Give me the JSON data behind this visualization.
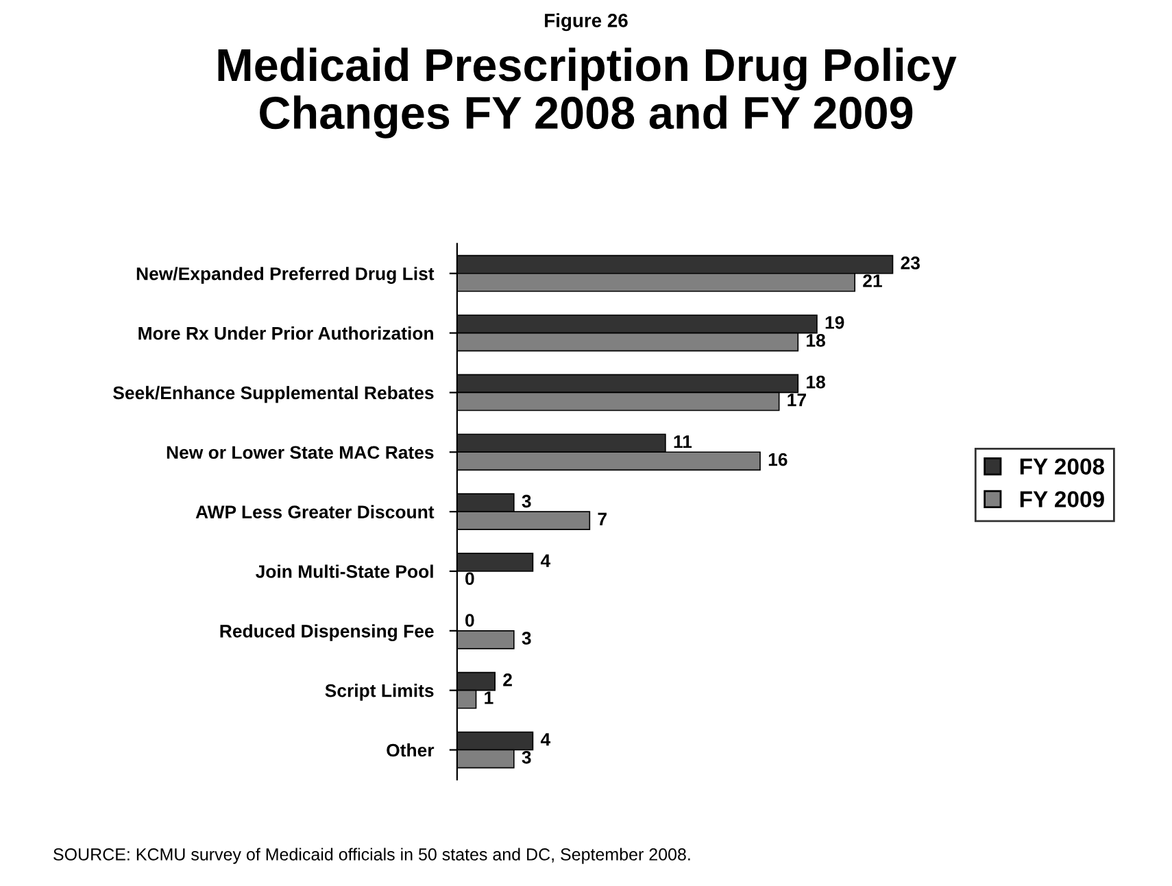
{
  "chart_data": {
    "type": "bar",
    "orientation": "horizontal",
    "title": "Medicaid Prescription Drug Policy\nChanges FY 2008 and FY 2009",
    "categories": [
      "New/Expanded Preferred Drug List",
      "More Rx Under Prior Authorization",
      "Seek/Enhance Supplemental Rebates",
      "New or Lower State MAC Rates",
      "AWP Less Greater Discount",
      "Join Multi-State Pool",
      "Reduced Dispensing Fee",
      "Script Limits",
      "Other"
    ],
    "series": [
      {
        "name": "FY 2008",
        "color": "#333333",
        "values": [
          23,
          19,
          18,
          11,
          3,
          4,
          0,
          2,
          4
        ]
      },
      {
        "name": "FY 2009",
        "color": "#808080",
        "values": [
          21,
          18,
          17,
          16,
          7,
          0,
          3,
          1,
          3
        ]
      }
    ],
    "data_labels": true,
    "legend": "right",
    "grid": false,
    "annotations": [
      "Figure 26",
      "SOURCE: KCMU survey of Medicaid officials in 50 states and DC, September 2008."
    ]
  }
}
